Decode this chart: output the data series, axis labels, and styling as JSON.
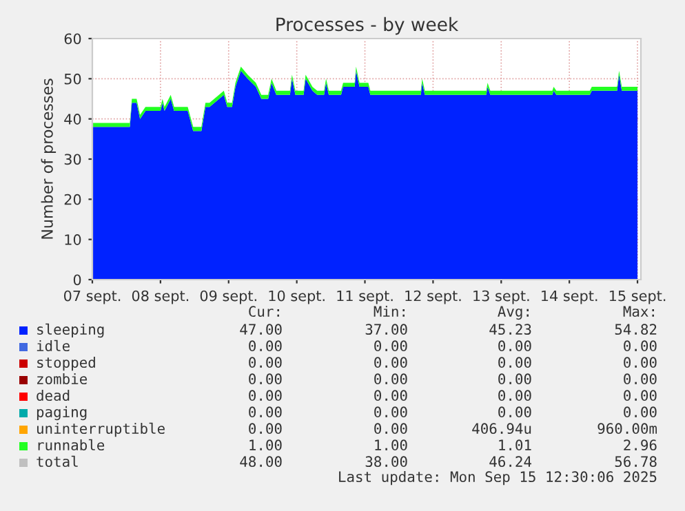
{
  "chart_data": {
    "type": "area",
    "title": "Processes - by week",
    "ylabel": "Number of processes",
    "x": [
      "2025-09-07T00:00",
      "2025-09-07T12:00",
      "2025-09-07T13:12",
      "2025-09-07T13:55",
      "2025-09-07T15:36",
      "2025-09-07T16:48",
      "2025-09-07T18:43",
      "2025-09-08T00:00",
      "2025-09-08T00:43",
      "2025-09-08T01:26",
      "2025-09-08T03:36",
      "2025-09-08T04:48",
      "2025-09-08T09:36",
      "2025-09-08T11:31",
      "2025-09-08T14:24",
      "2025-09-08T15:50",
      "2025-09-08T17:17",
      "2025-09-08T22:19",
      "2025-09-08T23:31",
      "2025-09-09T01:12",
      "2025-09-09T02:24",
      "2025-09-09T04:19",
      "2025-09-09T06:43",
      "2025-09-09T09:36",
      "2025-09-09T11:31",
      "2025-09-09T13:55",
      "2025-09-09T15:07",
      "2025-09-09T16:48",
      "2025-09-09T21:36",
      "2025-09-09T22:19",
      "2025-09-09T23:31",
      "2025-09-10T02:24",
      "2025-09-10T03:07",
      "2025-09-10T05:31",
      "2025-09-10T07:12",
      "2025-09-10T09:36",
      "2025-09-10T10:19",
      "2025-09-10T11:17",
      "2025-09-10T15:36",
      "2025-09-10T16:19",
      "2025-09-10T20:24",
      "2025-09-10T20:53",
      "2025-09-10T22:05",
      "2025-09-11T01:12",
      "2025-09-11T01:55",
      "2025-09-11T19:41",
      "2025-09-11T20:10",
      "2025-09-11T21:07",
      "2025-09-12T18:43",
      "2025-09-12T19:12",
      "2025-09-12T20:10",
      "2025-09-13T18:00",
      "2025-09-13T18:29",
      "2025-09-13T19:26",
      "2025-09-14T07:12",
      "2025-09-14T07:55",
      "2025-09-14T16:48",
      "2025-09-14T17:31",
      "2025-09-14T18:29",
      "2025-09-15T00:00"
    ],
    "stacked": true,
    "series": [
      {
        "name": "sleeping",
        "color": "#0022ff",
        "values": [
          38,
          38,
          38,
          44,
          44,
          40,
          42,
          42,
          44,
          42,
          45,
          42,
          42,
          37,
          37,
          43,
          43,
          46,
          43,
          43,
          48,
          52,
          50,
          48,
          45,
          45,
          49,
          46,
          46,
          50,
          46,
          46,
          50,
          47,
          46,
          46,
          49,
          46,
          46,
          48,
          48,
          52,
          48,
          48,
          46,
          46,
          49,
          46,
          46,
          48,
          46,
          46,
          47,
          46,
          46,
          47,
          47,
          51,
          47,
          47
        ]
      },
      {
        "name": "idle",
        "color": "#4169e1",
        "values": [
          null,
          null,
          null,
          null,
          null,
          null,
          null,
          null,
          null,
          null,
          null,
          null,
          null,
          null,
          null,
          null,
          null,
          null,
          null,
          null,
          null,
          null,
          null,
          null,
          null,
          null,
          null,
          null,
          null,
          null,
          null,
          null,
          null,
          null,
          null,
          null,
          null,
          null,
          null,
          null,
          null,
          null,
          null,
          null,
          null,
          null,
          null,
          null,
          null,
          null,
          null,
          null,
          null,
          null,
          null,
          null,
          null,
          null,
          null,
          null
        ]
      },
      {
        "name": "stopped",
        "color": "#cc0000",
        "values": [
          null,
          null,
          null,
          null,
          null,
          null,
          null,
          null,
          null,
          null,
          null,
          null,
          null,
          null,
          null,
          null,
          null,
          null,
          null,
          null,
          null,
          null,
          null,
          null,
          null,
          null,
          null,
          null,
          null,
          null,
          null,
          null,
          null,
          null,
          null,
          null,
          null,
          null,
          null,
          null,
          null,
          null,
          null,
          null,
          null,
          null,
          null,
          null,
          null,
          null,
          null,
          null,
          null,
          null,
          null,
          null,
          null,
          null,
          null,
          null
        ]
      },
      {
        "name": "zombie",
        "color": "#990000",
        "values": [
          null,
          null,
          null,
          null,
          null,
          null,
          null,
          null,
          null,
          null,
          null,
          null,
          null,
          null,
          null,
          null,
          null,
          null,
          null,
          null,
          null,
          null,
          null,
          null,
          null,
          null,
          null,
          null,
          null,
          null,
          null,
          null,
          null,
          null,
          null,
          null,
          null,
          null,
          null,
          null,
          null,
          null,
          null,
          null,
          null,
          null,
          null,
          null,
          null,
          null,
          null,
          null,
          null,
          null,
          null,
          null,
          null,
          null,
          null,
          null
        ]
      },
      {
        "name": "dead",
        "color": "#ff0000",
        "values": [
          null,
          null,
          null,
          null,
          null,
          null,
          null,
          null,
          null,
          null,
          null,
          null,
          null,
          null,
          null,
          null,
          null,
          null,
          null,
          null,
          null,
          null,
          null,
          null,
          null,
          null,
          null,
          null,
          null,
          null,
          null,
          null,
          null,
          null,
          null,
          null,
          null,
          null,
          null,
          null,
          null,
          null,
          null,
          null,
          null,
          null,
          null,
          null,
          null,
          null,
          null,
          null,
          null,
          null,
          null,
          null,
          null,
          null,
          null,
          null
        ]
      },
      {
        "name": "paging",
        "color": "#00aaaa",
        "values": [
          null,
          null,
          null,
          null,
          null,
          null,
          null,
          null,
          null,
          null,
          null,
          null,
          null,
          null,
          null,
          null,
          null,
          null,
          null,
          null,
          null,
          null,
          null,
          null,
          null,
          null,
          null,
          null,
          null,
          null,
          null,
          null,
          null,
          null,
          null,
          null,
          null,
          null,
          null,
          null,
          null,
          null,
          null,
          null,
          null,
          null,
          null,
          null,
          null,
          null,
          null,
          null,
          null,
          null,
          null,
          null,
          null,
          null,
          null,
          null
        ]
      },
      {
        "name": "uninterruptible",
        "color": "#ffa500",
        "values": [
          null,
          null,
          null,
          null,
          null,
          null,
          null,
          null,
          null,
          null,
          null,
          null,
          null,
          null,
          null,
          null,
          null,
          null,
          null,
          null,
          null,
          null,
          null,
          null,
          null,
          null,
          null,
          null,
          null,
          null,
          null,
          null,
          null,
          null,
          null,
          null,
          null,
          null,
          null,
          null,
          null,
          null,
          null,
          null,
          null,
          null,
          null,
          null,
          null,
          null,
          null,
          null,
          null,
          null,
          null,
          null,
          null,
          null,
          null,
          null
        ]
      },
      {
        "name": "runnable",
        "color": "#22ff22",
        "values": [
          1,
          1,
          1,
          1,
          1,
          1,
          1,
          1,
          1,
          1,
          1,
          1,
          1,
          1,
          1,
          1,
          1,
          1,
          1,
          1,
          1,
          1,
          1,
          1,
          1,
          1,
          1,
          1,
          1,
          1,
          1,
          1,
          1,
          1,
          1,
          1,
          1,
          1,
          1,
          1,
          1,
          1,
          1,
          1,
          1,
          1,
          1,
          1,
          1,
          1,
          1,
          1,
          1,
          1,
          1,
          1,
          1,
          1,
          1,
          1
        ]
      },
      {
        "name": "total",
        "color": "#c0c0c0",
        "values": [
          null,
          null,
          null,
          null,
          null,
          null,
          null,
          null,
          null,
          null,
          null,
          null,
          null,
          null,
          null,
          null,
          null,
          null,
          null,
          null,
          null,
          null,
          null,
          null,
          null,
          null,
          null,
          null,
          null,
          null,
          null,
          null,
          null,
          null,
          null,
          null,
          null,
          null,
          null,
          null,
          null,
          null,
          null,
          null,
          null,
          null,
          null,
          null,
          null,
          null,
          null,
          null,
          null,
          null,
          null,
          null,
          null,
          null,
          null,
          null
        ]
      }
    ],
    "xlim": [
      "2025-09-07T00:00",
      "2025-09-15T01:12"
    ],
    "xticks": [
      {
        "value": "2025-09-07",
        "label": "07 sept."
      },
      {
        "value": "2025-09-08",
        "label": "08 sept."
      },
      {
        "value": "2025-09-09",
        "label": "09 sept."
      },
      {
        "value": "2025-09-10",
        "label": "10 sept."
      },
      {
        "value": "2025-09-11",
        "label": "11 sept."
      },
      {
        "value": "2025-09-12",
        "label": "12 sept."
      },
      {
        "value": "2025-09-13",
        "label": "13 sept."
      },
      {
        "value": "2025-09-14",
        "label": "14 sept."
      },
      {
        "value": "2025-09-15",
        "label": "15 sept."
      }
    ],
    "ylim": [
      0,
      60
    ],
    "yticks": [
      0,
      10,
      20,
      30,
      40,
      50,
      60
    ],
    "grid": true,
    "legend": "bottom",
    "annotations": [
      "Cur:",
      "Min:",
      "Avg:",
      "Max:",
      "47.00",
      "37.00",
      "45.23",
      "54.82",
      "0.00",
      "0.00",
      "0.00",
      "0.00",
      "0.00",
      "0.00",
      "0.00",
      "0.00",
      "0.00",
      "0.00",
      "0.00",
      "0.00",
      "0.00",
      "0.00",
      "0.00",
      "0.00",
      "0.00",
      "0.00",
      "0.00",
      "0.00",
      "0.00",
      "0.00",
      "406.94u",
      "960.00m",
      "1.00",
      "1.00",
      "1.01",
      "2.96",
      "48.00",
      "38.00",
      "46.24",
      "56.78",
      "Last update: Mon Sep 15 12:30:06 2025"
    ]
  }
}
